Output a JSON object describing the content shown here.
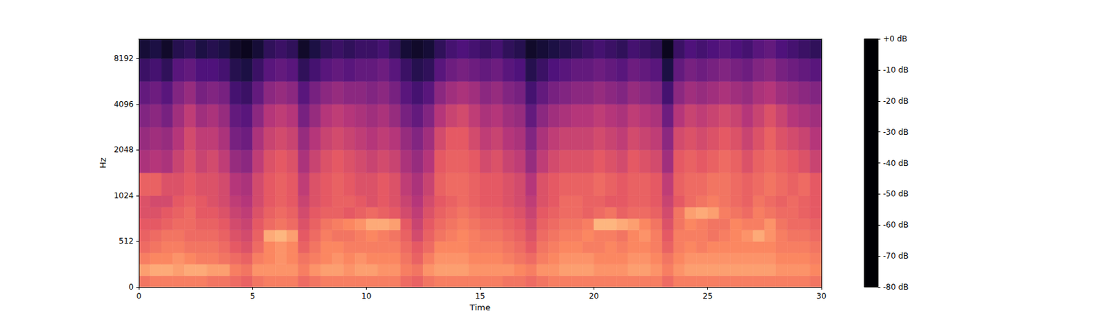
{
  "chart_data": {
    "type": "heatmap",
    "x_label": "Time",
    "y_label": "Hz",
    "xlim": [
      0,
      30
    ],
    "xticks": [
      0,
      5,
      10,
      15,
      20,
      25,
      30
    ],
    "ylim": [
      0,
      11025
    ],
    "yticks": [
      0,
      512,
      1024,
      2048,
      4096,
      8192
    ],
    "grid": false,
    "x_edges": [
      0,
      0.5,
      1,
      1.5,
      2,
      2.5,
      3,
      3.5,
      4,
      4.5,
      5,
      5.5,
      6,
      6.5,
      7,
      7.5,
      8,
      8.5,
      9,
      9.5,
      10,
      10.5,
      11,
      11.5,
      12,
      12.5,
      13,
      13.5,
      14,
      14.5,
      15,
      15.5,
      16,
      16.5,
      17,
      17.5,
      18,
      18.5,
      19,
      19.5,
      20,
      20.5,
      21,
      21.5,
      22,
      22.5,
      23,
      23.5,
      24,
      24.5,
      25,
      25.5,
      26,
      26.5,
      27,
      27.5,
      28,
      28.5,
      29,
      29.5,
      30
    ],
    "y_edges": [
      0,
      128,
      256,
      384,
      512,
      640,
      768,
      896,
      1024,
      1448,
      2048,
      2896,
      4096,
      5793,
      8192,
      11025
    ],
    "cells": [
      [
        -24,
        -22,
        -22,
        -22,
        -22,
        -22,
        -24,
        -24,
        -26,
        -28,
        -24,
        -22,
        -22,
        -22,
        -26,
        -24,
        -22,
        -22,
        -22,
        -22,
        -22,
        -22,
        -22,
        -26,
        -28,
        -24,
        -22,
        -22,
        -22,
        -22,
        -22,
        -22,
        -24,
        -24,
        -26,
        -24,
        -22,
        -22,
        -22,
        -22,
        -22,
        -22,
        -22,
        -22,
        -22,
        -22,
        -26,
        -22,
        -22,
        -22,
        -22,
        -22,
        -22,
        -22,
        -22,
        -22,
        -22,
        -22,
        -22,
        -24
      ],
      [
        -16,
        -14,
        -14,
        -16,
        -14,
        -14,
        -16,
        -16,
        -22,
        -24,
        -18,
        -18,
        -18,
        -18,
        -22,
        -18,
        -16,
        -16,
        -18,
        -16,
        -16,
        -18,
        -18,
        -22,
        -24,
        -18,
        -16,
        -16,
        -16,
        -18,
        -18,
        -18,
        -18,
        -20,
        -22,
        -18,
        -18,
        -16,
        -16,
        -16,
        -18,
        -18,
        -18,
        -16,
        -16,
        -18,
        -22,
        -18,
        -16,
        -16,
        -16,
        -16,
        -16,
        -16,
        -16,
        -16,
        -18,
        -18,
        -18,
        -20
      ],
      [
        -22,
        -20,
        -20,
        -18,
        -20,
        -22,
        -22,
        -24,
        -26,
        -28,
        -22,
        -20,
        -18,
        -20,
        -24,
        -22,
        -20,
        -18,
        -20,
        -18,
        -20,
        -20,
        -20,
        -24,
        -28,
        -22,
        -18,
        -18,
        -18,
        -20,
        -20,
        -20,
        -22,
        -24,
        -26,
        -22,
        -20,
        -18,
        -18,
        -18,
        -20,
        -20,
        -20,
        -18,
        -18,
        -20,
        -24,
        -20,
        -18,
        -18,
        -18,
        -18,
        -18,
        -18,
        -18,
        -18,
        -20,
        -20,
        -20,
        -22
      ],
      [
        -26,
        -24,
        -22,
        -22,
        -24,
        -24,
        -24,
        -26,
        -30,
        -32,
        -26,
        -20,
        -18,
        -20,
        -28,
        -24,
        -20,
        -20,
        -22,
        -22,
        -22,
        -22,
        -22,
        -26,
        -30,
        -26,
        -20,
        -20,
        -20,
        -22,
        -22,
        -22,
        -24,
        -26,
        -30,
        -24,
        -22,
        -20,
        -20,
        -22,
        -22,
        -20,
        -22,
        -20,
        -20,
        -22,
        -28,
        -22,
        -20,
        -22,
        -20,
        -20,
        -20,
        -20,
        -20,
        -20,
        -22,
        -22,
        -22,
        -24
      ],
      [
        -28,
        -26,
        -24,
        -24,
        -26,
        -26,
        -26,
        -28,
        -32,
        -34,
        -28,
        -14,
        -12,
        -16,
        -30,
        -26,
        -22,
        -24,
        -24,
        -22,
        -20,
        -22,
        -24,
        -28,
        -34,
        -28,
        -24,
        -22,
        -20,
        -22,
        -24,
        -24,
        -26,
        -28,
        -32,
        -26,
        -24,
        -22,
        -22,
        -20,
        -22,
        -22,
        -24,
        -20,
        -18,
        -22,
        -30,
        -22,
        -22,
        -22,
        -24,
        -22,
        -20,
        -18,
        -14,
        -18,
        -22,
        -24,
        -24,
        -26
      ],
      [
        -30,
        -30,
        -28,
        -26,
        -26,
        -28,
        -28,
        -30,
        -34,
        -36,
        -30,
        -26,
        -24,
        -26,
        -32,
        -28,
        -24,
        -22,
        -20,
        -18,
        -14,
        -14,
        -16,
        -30,
        -36,
        -30,
        -26,
        -24,
        -22,
        -24,
        -26,
        -26,
        -28,
        -30,
        -34,
        -28,
        -26,
        -24,
        -24,
        -22,
        -12,
        -12,
        -14,
        -16,
        -20,
        -24,
        -32,
        -24,
        -20,
        -22,
        -24,
        -24,
        -20,
        -22,
        -22,
        -18,
        -24,
        -26,
        -26,
        -28
      ],
      [
        -32,
        -32,
        -30,
        -28,
        -26,
        -30,
        -30,
        -32,
        -36,
        -38,
        -32,
        -28,
        -26,
        -28,
        -34,
        -30,
        -28,
        -28,
        -30,
        -28,
        -26,
        -28,
        -30,
        -34,
        -38,
        -32,
        -28,
        -26,
        -24,
        -26,
        -28,
        -28,
        -30,
        -32,
        -36,
        -30,
        -28,
        -26,
        -26,
        -28,
        -26,
        -24,
        -28,
        -26,
        -26,
        -28,
        -34,
        -24,
        -16,
        -14,
        -16,
        -22,
        -24,
        -26,
        -22,
        -24,
        -26,
        -26,
        -28,
        -30
      ],
      [
        -32,
        -34,
        -34,
        -30,
        -28,
        -30,
        -32,
        -34,
        -38,
        -40,
        -34,
        -30,
        -28,
        -30,
        -36,
        -32,
        -30,
        -28,
        -28,
        -30,
        -32,
        -30,
        -32,
        -36,
        -40,
        -34,
        -30,
        -28,
        -26,
        -28,
        -30,
        -30,
        -32,
        -34,
        -38,
        -32,
        -30,
        -26,
        -26,
        -28,
        -28,
        -30,
        -30,
        -28,
        -28,
        -30,
        -36,
        -30,
        -26,
        -24,
        -22,
        -24,
        -26,
        -28,
        -24,
        -26,
        -28,
        -26,
        -28,
        -30
      ],
      [
        -28,
        -28,
        -32,
        -32,
        -30,
        -32,
        -32,
        -34,
        -40,
        -42,
        -34,
        -30,
        -28,
        -30,
        -38,
        -32,
        -30,
        -28,
        -30,
        -32,
        -32,
        -30,
        -32,
        -38,
        -42,
        -36,
        -28,
        -26,
        -26,
        -28,
        -30,
        -30,
        -32,
        -34,
        -40,
        -32,
        -30,
        -28,
        -28,
        -28,
        -26,
        -28,
        -30,
        -28,
        -28,
        -30,
        -38,
        -28,
        -26,
        -26,
        -24,
        -24,
        -26,
        -28,
        -26,
        -24,
        -26,
        -28,
        -26,
        -30
      ],
      [
        -42,
        -40,
        -42,
        -36,
        -32,
        -36,
        -34,
        -38,
        -46,
        -48,
        -38,
        -32,
        -30,
        -32,
        -42,
        -36,
        -32,
        -30,
        -32,
        -34,
        -36,
        -34,
        -36,
        -42,
        -46,
        -40,
        -30,
        -28,
        -28,
        -30,
        -34,
        -32,
        -36,
        -38,
        -46,
        -38,
        -34,
        -32,
        -32,
        -32,
        -30,
        -32,
        -34,
        -30,
        -32,
        -34,
        -44,
        -30,
        -28,
        -30,
        -28,
        -26,
        -28,
        -32,
        -28,
        -26,
        -28,
        -30,
        -32,
        -36
      ],
      [
        -46,
        -44,
        -46,
        -40,
        -34,
        -38,
        -38,
        -42,
        -52,
        -54,
        -42,
        -36,
        -34,
        -36,
        -46,
        -40,
        -36,
        -34,
        -36,
        -38,
        -40,
        -38,
        -40,
        -46,
        -50,
        -44,
        -34,
        -30,
        -30,
        -34,
        -38,
        -36,
        -40,
        -42,
        -50,
        -42,
        -38,
        -36,
        -36,
        -36,
        -34,
        -36,
        -38,
        -34,
        -36,
        -38,
        -48,
        -34,
        -32,
        -34,
        -32,
        -30,
        -32,
        -36,
        -32,
        -28,
        -32,
        -34,
        -36,
        -40
      ],
      [
        -50,
        -48,
        -52,
        -44,
        -38,
        -44,
        -42,
        -46,
        -56,
        -58,
        -48,
        -40,
        -38,
        -40,
        -52,
        -46,
        -40,
        -38,
        -40,
        -42,
        -44,
        -42,
        -46,
        -52,
        -56,
        -50,
        -40,
        -36,
        -34,
        -38,
        -42,
        -40,
        -44,
        -46,
        -56,
        -48,
        -44,
        -42,
        -40,
        -40,
        -38,
        -40,
        -42,
        -38,
        -40,
        -42,
        -54,
        -40,
        -36,
        -38,
        -36,
        -34,
        -36,
        -40,
        -36,
        -32,
        -36,
        -40,
        -42,
        -44
      ],
      [
        -56,
        -54,
        -58,
        -50,
        -46,
        -52,
        -50,
        -52,
        -62,
        -64,
        -56,
        -48,
        -46,
        -48,
        -58,
        -52,
        -48,
        -46,
        -48,
        -48,
        -50,
        -48,
        -52,
        -58,
        -62,
        -58,
        -48,
        -44,
        -42,
        -44,
        -48,
        -46,
        -50,
        -52,
        -62,
        -56,
        -52,
        -50,
        -48,
        -48,
        -46,
        -48,
        -50,
        -46,
        -48,
        -50,
        -62,
        -48,
        -44,
        -46,
        -44,
        -42,
        -44,
        -46,
        -42,
        -40,
        -44,
        -46,
        -48,
        -50
      ],
      [
        -64,
        -62,
        -66,
        -58,
        -56,
        -60,
        -60,
        -62,
        -68,
        -70,
        -64,
        -58,
        -56,
        -58,
        -66,
        -62,
        -58,
        -56,
        -58,
        -56,
        -56,
        -54,
        -58,
        -64,
        -68,
        -66,
        -58,
        -54,
        -52,
        -54,
        -56,
        -54,
        -58,
        -60,
        -68,
        -64,
        -60,
        -58,
        -56,
        -56,
        -54,
        -56,
        -58,
        -54,
        -56,
        -58,
        -70,
        -56,
        -52,
        -54,
        -52,
        -50,
        -52,
        -54,
        -50,
        -48,
        -52,
        -54,
        -56,
        -58
      ],
      [
        -72,
        -70,
        -74,
        -68,
        -66,
        -70,
        -68,
        -70,
        -74,
        -76,
        -72,
        -66,
        -64,
        -66,
        -74,
        -70,
        -66,
        -64,
        -66,
        -64,
        -64,
        -62,
        -66,
        -72,
        -74,
        -72,
        -66,
        -62,
        -60,
        -62,
        -64,
        -62,
        -66,
        -68,
        -74,
        -72,
        -70,
        -68,
        -66,
        -64,
        -62,
        -64,
        -66,
        -62,
        -64,
        -66,
        -76,
        -64,
        -60,
        -62,
        -60,
        -58,
        -60,
        -62,
        -58,
        -56,
        -60,
        -62,
        -64,
        -66
      ]
    ],
    "colorbar": {
      "range": [
        -80,
        0
      ],
      "ticks": [
        {
          "value": 0,
          "label": "+0 dB"
        },
        {
          "value": -10,
          "label": "-10 dB"
        },
        {
          "value": -20,
          "label": "-20 dB"
        },
        {
          "value": -30,
          "label": "-30 dB"
        },
        {
          "value": -40,
          "label": "-40 dB"
        },
        {
          "value": -50,
          "label": "-50 dB"
        },
        {
          "value": -60,
          "label": "-60 dB"
        },
        {
          "value": -70,
          "label": "-70 dB"
        },
        {
          "value": -80,
          "label": "-80 dB"
        }
      ]
    }
  }
}
